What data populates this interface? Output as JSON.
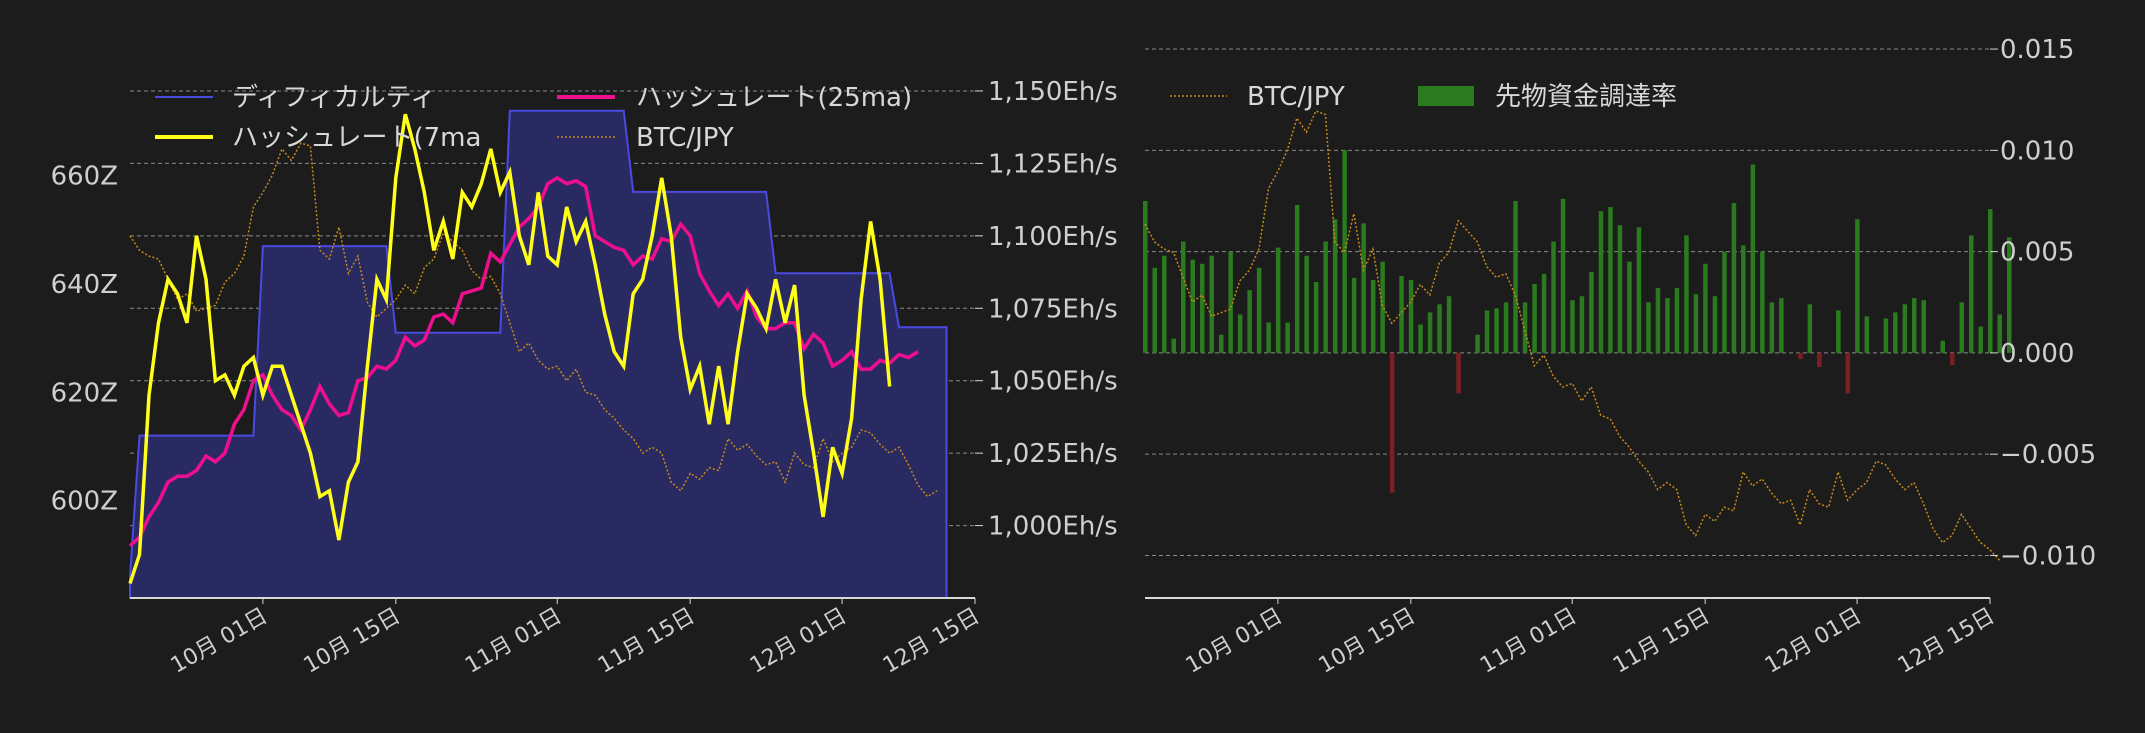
{
  "colors": {
    "background": "#1c1c1c",
    "difficulty_fill": "#2a2a63",
    "difficulty_line": "#4a4ae0",
    "hash7": "#ffff1a",
    "hash25": "#ee0f8f",
    "btc": "#c58a18",
    "funding_pos": "#2b7a1f",
    "funding_neg": "#7a1f24",
    "grid": "#8a8a8a",
    "axis": "#d8d8d8"
  },
  "chart_data": [
    {
      "type": "line",
      "x_ticks": [
        "10月 01日",
        "10月 15日",
        "11月 01日",
        "11月 15日",
        "12月 01日",
        "12月 15日"
      ],
      "x_tick_dates": [
        "2023-10-01",
        "2023-10-15",
        "2023-11-01",
        "2023-11-15",
        "2023-12-01",
        "2023-12-15"
      ],
      "x_range": [
        "2023-09-17",
        "2023-12-15"
      ],
      "y_left": {
        "ticks": [
          "600Z",
          "620Z",
          "640Z",
          "660Z"
        ],
        "tick_values": [
          600,
          620,
          640,
          660
        ],
        "range": [
          582,
          681
        ]
      },
      "y_right": {
        "ticks": [
          "1,000Eh/s",
          "1,025Eh/s",
          "1,050Eh/s",
          "1,075Eh/s",
          "1,100Eh/s",
          "1,125Eh/s",
          "1,150Eh/s"
        ],
        "tick_values": [
          1000,
          1025,
          1050,
          1075,
          1100,
          1125,
          1150
        ],
        "range": [
          975,
          1160
        ]
      },
      "grid": true,
      "legend_position": "top",
      "legend": [
        "ディフィカルティ",
        "ハッシュレート(7ma",
        "ハッシュレート(25ma)",
        "BTC/JPY"
      ],
      "series": [
        {
          "name": "ディフィカルティ",
          "axis": "left",
          "kind": "step-area",
          "points": [
            [
              "2023-09-17",
              586
            ],
            [
              "2023-09-18",
              612
            ],
            [
              "2023-09-30",
              612
            ],
            [
              "2023-10-01",
              647
            ],
            [
              "2023-10-14",
              647
            ],
            [
              "2023-10-15",
              631
            ],
            [
              "2023-10-26",
              631
            ],
            [
              "2023-10-27",
              672
            ],
            [
              "2023-11-08",
              672
            ],
            [
              "2023-11-09",
              657
            ],
            [
              "2023-11-23",
              657
            ],
            [
              "2023-11-24",
              642
            ],
            [
              "2023-12-06",
              642
            ],
            [
              "2023-12-07",
              632
            ],
            [
              "2023-12-12",
              632
            ]
          ]
        },
        {
          "name": "ハッシュレート(7ma",
          "axis": "right",
          "x_start": "2023-09-17",
          "values": [
            980,
            990,
            1045,
            1070,
            1085,
            1080,
            1070,
            1100,
            1085,
            1050,
            1052,
            1045,
            1055,
            1058,
            1045,
            1055,
            1055,
            1045,
            1035,
            1025,
            1010,
            1012,
            995,
            1015,
            1022,
            1055,
            1085,
            1078,
            1120,
            1142,
            1130,
            1115,
            1095,
            1105,
            1092,
            1115,
            1110,
            1118,
            1130,
            1115,
            1122,
            1100,
            1090,
            1115,
            1093,
            1090,
            1110,
            1098,
            1105,
            1090,
            1073,
            1060,
            1055,
            1080,
            1085,
            1100,
            1120,
            1100,
            1065,
            1047,
            1055,
            1035,
            1055,
            1035,
            1060,
            1080,
            1075,
            1068,
            1085,
            1070,
            1083,
            1045,
            1025,
            1003,
            1027,
            1018,
            1037,
            1078,
            1105,
            1085,
            1048
          ]
        },
        {
          "name": "ハッシュレート(25ma)",
          "axis": "right",
          "x_start": "2023-09-17",
          "values": [
            993,
            996,
            1003,
            1008,
            1015,
            1017,
            1017,
            1019,
            1024,
            1022,
            1025,
            1035,
            1040,
            1050,
            1052,
            1045,
            1040,
            1038,
            1033,
            1040,
            1048,
            1042,
            1038,
            1039,
            1050,
            1051,
            1055,
            1054,
            1057,
            1065,
            1062,
            1064,
            1072,
            1073,
            1070,
            1080,
            1081,
            1082,
            1094,
            1091,
            1097,
            1103,
            1106,
            1110,
            1118,
            1120,
            1118,
            1119,
            1117,
            1100,
            1098,
            1096,
            1095,
            1090,
            1093,
            1092,
            1099,
            1098,
            1104,
            1100,
            1087,
            1081,
            1076,
            1080,
            1075,
            1081,
            1072,
            1068,
            1068,
            1070,
            1070,
            1061,
            1066,
            1063,
            1055,
            1057,
            1060,
            1054,
            1054,
            1057,
            1056,
            1059,
            1058,
            1060
          ]
        },
        {
          "name": "BTC/JPY",
          "axis": "right",
          "x_start": "2023-09-17",
          "values": [
            1100,
            1095,
            1093,
            1092,
            1085,
            1078,
            1080,
            1074,
            1075,
            1076,
            1084,
            1087,
            1093,
            1110,
            1115,
            1121,
            1130,
            1126,
            1132,
            1131,
            1095,
            1092,
            1103,
            1087,
            1093,
            1077,
            1072,
            1075,
            1078,
            1083,
            1080,
            1089,
            1092,
            1101,
            1098,
            1095,
            1088,
            1085,
            1086,
            1080,
            1070,
            1060,
            1063,
            1057,
            1054,
            1055,
            1050,
            1054,
            1046,
            1045,
            1040,
            1037,
            1033,
            1030,
            1025,
            1027,
            1025,
            1015,
            1012,
            1018,
            1016,
            1020,
            1019,
            1030,
            1026,
            1028,
            1024,
            1021,
            1022,
            1015,
            1025,
            1021,
            1020,
            1030,
            1022,
            1025,
            1027,
            1033,
            1032,
            1028,
            1025,
            1027,
            1021,
            1014,
            1010,
            1012
          ]
        }
      ]
    },
    {
      "type": "bar",
      "x_ticks": [
        "10月 01日",
        "10月 15日",
        "11月 01日",
        "11月 15日",
        "12月 01日",
        "12月 15日"
      ],
      "x_tick_dates": [
        "2023-10-01",
        "2023-10-15",
        "2023-11-01",
        "2023-11-15",
        "2023-12-01",
        "2023-12-15"
      ],
      "x_range": [
        "2023-09-17",
        "2023-12-15"
      ],
      "y_right": {
        "ticks": [
          "−0.010",
          "−0.005",
          "0.000",
          "0.005",
          "0.010",
          "0.015"
        ],
        "tick_values": [
          -0.01,
          -0.005,
          0.0,
          0.005,
          0.01,
          0.015
        ],
        "range": [
          -0.0121,
          0.0152
        ]
      },
      "btc_range": [
        1000,
        1145
      ],
      "grid": true,
      "legend_position": "top",
      "legend": [
        "BTC/JPY",
        "先物資金調達率"
      ],
      "series": [
        {
          "name": "先物資金調達率",
          "kind": "bar",
          "x_start": "2023-09-17",
          "values": [
            0.0075,
            0.0042,
            0.0048,
            0.0007,
            0.0055,
            0.0046,
            0.0044,
            0.0048,
            0.0009,
            0.005,
            0.0019,
            0.0031,
            0.0042,
            0.0015,
            0.0052,
            0.0015,
            0.0073,
            0.0048,
            0.0035,
            0.0055,
            0.0066,
            0.01,
            0.0037,
            0.0064,
            0.0036,
            0.0045,
            -0.0069,
            0.0038,
            0.0036,
            0.0014,
            0.002,
            0.0024,
            0.0028,
            -0.002,
            0.0,
            0.0009,
            0.0021,
            0.0022,
            0.0025,
            0.0075,
            0.0025,
            0.0034,
            0.0039,
            0.0055,
            0.0076,
            0.0026,
            0.0028,
            0.004,
            0.007,
            0.0072,
            0.0063,
            0.0045,
            0.0062,
            0.0025,
            0.0032,
            0.0027,
            0.0032,
            0.0058,
            0.0029,
            0.0044,
            0.0028,
            0.005,
            0.0074,
            0.0053,
            0.0093,
            0.005,
            0.0025,
            0.0027,
            0.0,
            -0.0003,
            0.0024,
            -0.0007,
            0.0,
            0.0021,
            -0.002,
            0.0066,
            0.0018,
            0.0,
            0.0017,
            0.002,
            0.0024,
            0.0027,
            0.0026,
            0.0,
            0.0006,
            -0.0006,
            0.0025,
            0.0058,
            0.0013,
            0.0071,
            0.0019,
            0.0057
          ]
        },
        {
          "name": "BTC/JPY",
          "kind": "line",
          "x_start": "2023-09-17",
          "values": [
            1100,
            1095,
            1093,
            1092,
            1085,
            1078,
            1080,
            1074,
            1075,
            1076,
            1084,
            1087,
            1093,
            1110,
            1115,
            1121,
            1130,
            1126,
            1132,
            1131,
            1095,
            1092,
            1103,
            1087,
            1093,
            1077,
            1072,
            1075,
            1078,
            1083,
            1080,
            1089,
            1092,
            1101,
            1098,
            1095,
            1088,
            1085,
            1086,
            1080,
            1070,
            1060,
            1063,
            1057,
            1054,
            1055,
            1050,
            1054,
            1046,
            1045,
            1040,
            1037,
            1033,
            1030,
            1025,
            1027,
            1025,
            1015,
            1012,
            1018,
            1016,
            1020,
            1019,
            1030,
            1026,
            1028,
            1024,
            1021,
            1022,
            1015,
            1025,
            1021,
            1020,
            1030,
            1022,
            1025,
            1027,
            1033,
            1032,
            1028,
            1025,
            1027,
            1021,
            1014,
            1010,
            1012,
            1018,
            1014,
            1010,
            1008,
            1005
          ]
        }
      ]
    }
  ]
}
